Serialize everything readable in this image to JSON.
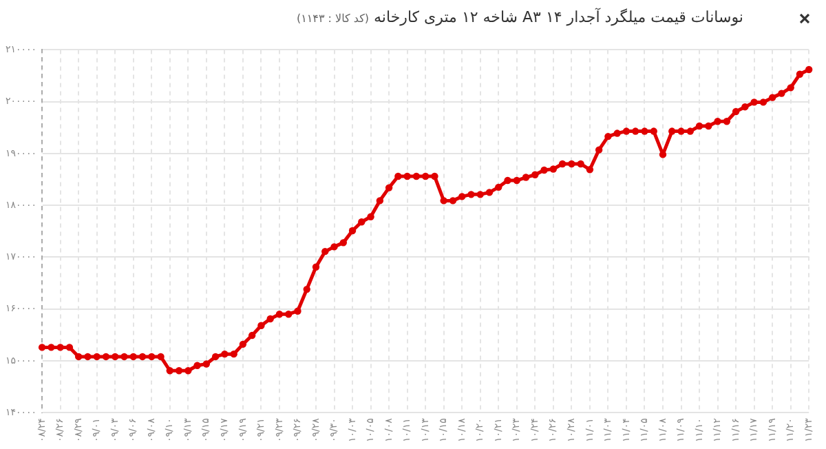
{
  "chart_data": {
    "type": "line",
    "title": "نوسانات قیمت میلگرد آجدار ۱۴ A۳ شاخه ۱۲ متری کارخانه",
    "subtitle": "(کد کالا : ۱۱۴۳)",
    "categories": [
      "۰۸/۲۴",
      null,
      "۰۸/۲۶",
      null,
      "۰۸/۲۹",
      null,
      "۰۹/۰۱",
      null,
      "۰۹/۰۳",
      null,
      "۰۹/۰۶",
      null,
      "۰۹/۰۸",
      null,
      "۰۹/۱۰",
      null,
      "۰۹/۱۳",
      null,
      "۰۹/۱۵",
      null,
      "۰۹/۱۷",
      null,
      "۰۹/۱۹",
      null,
      "۰۹/۲۱",
      null,
      "۰۹/۲۳",
      null,
      "۰۹/۲۶",
      null,
      "۰۹/۲۸",
      null,
      "۰۹/۳۰",
      null,
      "۱۰/۰۳",
      null,
      "۱۰/۰۵",
      null,
      "۱۰/۰۸",
      null,
      "۱۰/۱۱",
      null,
      "۱۰/۱۳",
      null,
      "۱۰/۱۵",
      null,
      "۱۰/۱۸",
      null,
      "۱۰/۲۰",
      null,
      "۱۰/۲۱",
      null,
      "۱۰/۲۳",
      null,
      "۱۰/۲۴",
      null,
      "۱۰/۲۶",
      null,
      "۱۰/۲۸",
      null,
      "۱۱/۰۱",
      null,
      "۱۱/۰۳",
      null,
      "۱۱/۰۴",
      null,
      "۱۱/۰۵",
      null,
      "۱۱/۰۸",
      null,
      "۱۱/۰۹",
      null,
      "۱۱/۱۰",
      null,
      "۱۱/۱۲",
      null,
      "۱۱/۱۶",
      null,
      "۱۱/۱۷",
      null,
      "۱۱/۱۹",
      null,
      "۱۱/۲۰",
      null,
      "۱۱/۲۳"
    ],
    "series": [
      {
        "color": "#e00000",
        "values": [
          152600,
          152600,
          152600,
          152600,
          150800,
          150800,
          150800,
          150800,
          150800,
          150800,
          150800,
          150800,
          150800,
          150800,
          148100,
          148100,
          148100,
          149100,
          149400,
          150800,
          151300,
          151300,
          153200,
          154900,
          156800,
          158100,
          159000,
          159000,
          159600,
          163800,
          168100,
          171100,
          172000,
          172800,
          175100,
          176800,
          177800,
          180900,
          183400,
          185600,
          185600,
          185600,
          185600,
          185600,
          180900,
          180900,
          181700,
          182100,
          182100,
          182500,
          183500,
          184800,
          184800,
          185400,
          185900,
          186800,
          187000,
          188000,
          188000,
          188000,
          186900,
          190700,
          193300,
          193900,
          194300,
          194300,
          194300,
          194300,
          189800,
          194300,
          194300,
          194300,
          195300,
          195300,
          196200,
          196200,
          198100,
          199000,
          199900,
          199900,
          200800,
          201600,
          202700,
          205300,
          206200
        ]
      }
    ],
    "ylim": [
      140000,
      210000
    ],
    "yticks": [
      {
        "value": 140000,
        "label": "۱۴۰۰۰۰"
      },
      {
        "value": 150000,
        "label": "۱۵۰۰۰۰"
      },
      {
        "value": 160000,
        "label": "۱۶۰۰۰۰"
      },
      {
        "value": 170000,
        "label": "۱۷۰۰۰۰"
      },
      {
        "value": 180000,
        "label": "۱۸۰۰۰۰"
      },
      {
        "value": 190000,
        "label": "۱۹۰۰۰۰"
      },
      {
        "value": 200000,
        "label": "۲۰۰۰۰۰"
      },
      {
        "value": 210000,
        "label": "۲۱۰۰۰۰"
      }
    ],
    "grid": true,
    "legend": false,
    "marker": "circle",
    "line_style": "solid"
  }
}
